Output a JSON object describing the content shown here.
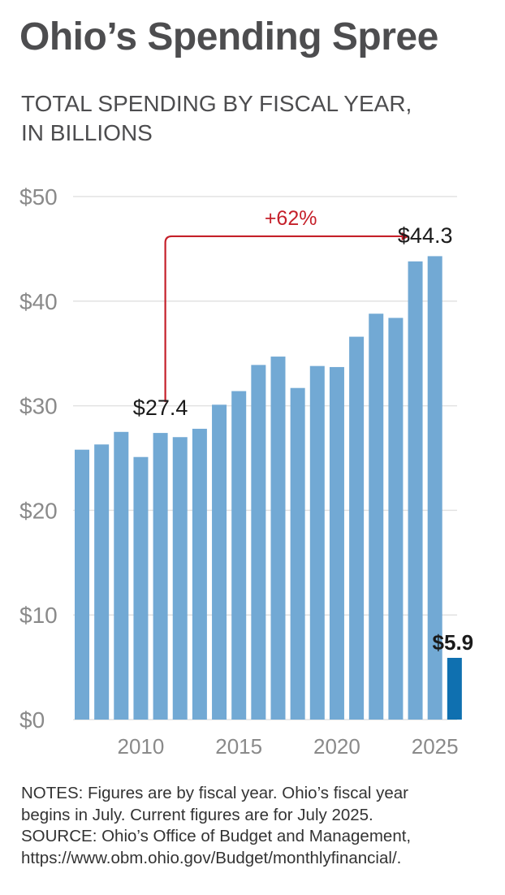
{
  "header": {
    "title": "Ohio’s Spending Spree",
    "subtitle_line1": "TOTAL SPENDING BY FISCAL YEAR,",
    "subtitle_line2": "IN BILLIONS"
  },
  "notes": {
    "line1": "NOTES: Figures are by fiscal year. Ohio’s fiscal year",
    "line2": "begins in July. Current figures are for July 2025.",
    "line3": "SOURCE: Ohio’s Office of Budget and Management,",
    "line4": "https://www.obm.ohio.gov/Budget/monthlyfinancial/."
  },
  "colors": {
    "bar": "#72a9d4",
    "bar_current": "#0f70b0",
    "grid": "#e2e2e2",
    "axis_text": "#8a8a8a",
    "annotation": "#c5202a",
    "label": "#1a1a1a"
  },
  "chart_data": {
    "type": "bar",
    "title": "TOTAL SPENDING BY FISCAL YEAR, IN BILLIONS",
    "xlabel": "",
    "ylabel": "",
    "x": [
      2007,
      2008,
      2009,
      2010,
      2011,
      2012,
      2013,
      2014,
      2015,
      2016,
      2017,
      2018,
      2019,
      2020,
      2021,
      2022,
      2023,
      2024,
      2025,
      2026
    ],
    "values": [
      25.8,
      26.3,
      27.5,
      25.1,
      27.4,
      27.0,
      27.8,
      30.1,
      31.4,
      33.9,
      34.7,
      31.7,
      33.8,
      33.7,
      36.6,
      38.8,
      38.4,
      43.8,
      44.3,
      5.9
    ],
    "highlight_index": 19,
    "ylim": [
      0,
      50
    ],
    "y_ticks": [
      0,
      10,
      20,
      30,
      40,
      50
    ],
    "y_tick_labels": [
      "$0",
      "$10",
      "$20",
      "$30",
      "$40",
      "$50"
    ],
    "x_ticks": [
      2010,
      2015,
      2020,
      2025
    ],
    "x_tick_labels": [
      "2010",
      "2015",
      "2020",
      "2025"
    ],
    "grid": true,
    "data_labels": [
      {
        "index": 4,
        "text": "$27.4"
      },
      {
        "index": 18,
        "text": "$44.3"
      },
      {
        "index": 19,
        "text": "$5.9",
        "bold": true
      }
    ],
    "annotation": {
      "text": "+62%",
      "from_index": 4,
      "to_index": 18,
      "level": 46.2
    }
  }
}
